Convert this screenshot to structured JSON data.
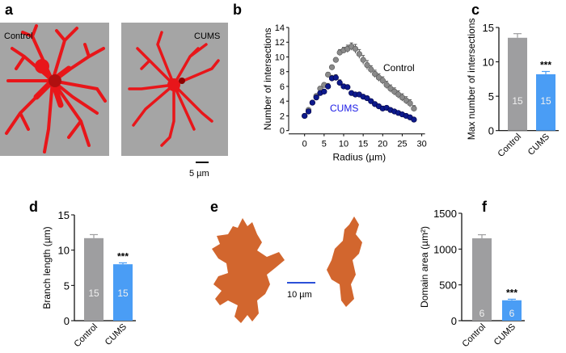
{
  "panel_labels": {
    "a": "a",
    "b": "b",
    "c": "c",
    "d": "d",
    "e": "e",
    "f": "f"
  },
  "panel_a": {
    "left_label": "Control",
    "right_label": "CUMS",
    "scale_bar": "5 µm"
  },
  "panel_e": {
    "scale_bar": "10 µm"
  },
  "colors": {
    "control_bar": "#9e9ea0",
    "cums_bar": "#4a9df5",
    "control_points": "#8a8a8a",
    "cums_points": "#0d1a8c",
    "cums_label": "#1a1ae6",
    "cell_red": "#e8161a",
    "cell_orange": "#d2662e",
    "image_bg": "#a5a5a5"
  },
  "chart_data": [
    {
      "id": "b",
      "type": "scatter",
      "xlabel": "Radius (µm)",
      "ylabel": "Number of intersections",
      "xlim": [
        -2,
        30
      ],
      "ylim": [
        0,
        14
      ],
      "xticks": [
        0,
        5,
        10,
        15,
        20,
        25,
        30
      ],
      "yticks": [
        0,
        2,
        4,
        6,
        8,
        10,
        12,
        14
      ],
      "series": [
        {
          "name": "Control",
          "x": [
            0,
            1,
            2,
            3,
            4,
            5,
            6,
            7,
            8,
            9,
            10,
            11,
            12,
            13,
            14,
            15,
            16,
            17,
            18,
            19,
            20,
            21,
            22,
            23,
            24,
            25,
            26,
            27,
            28
          ],
          "y": [
            2.0,
            2.8,
            3.8,
            4.7,
            5.7,
            6.2,
            7.6,
            8.6,
            9.6,
            10.6,
            10.9,
            11.1,
            11.4,
            11.1,
            10.4,
            9.6,
            8.9,
            8.3,
            7.7,
            7.2,
            6.8,
            6.2,
            5.7,
            5.3,
            4.9,
            4.5,
            4.1,
            3.7,
            3.0
          ],
          "err": [
            0.1,
            0.2,
            0.2,
            0.2,
            0.3,
            0.3,
            0.3,
            0.3,
            0.3,
            0.4,
            0.4,
            0.5,
            0.5,
            0.6,
            0.6,
            0.6,
            0.6,
            0.5,
            0.5,
            0.5,
            0.5,
            0.5,
            0.5,
            0.5,
            0.5,
            0.5,
            0.5,
            0.5,
            0.4
          ]
        },
        {
          "name": "CUMS",
          "x": [
            0,
            1,
            2,
            3,
            4,
            5,
            6,
            7,
            8,
            9,
            10,
            11,
            12,
            13,
            14,
            15,
            16,
            17,
            18,
            19,
            20,
            21,
            22,
            23,
            24,
            25,
            26,
            27,
            28
          ],
          "y": [
            2.0,
            2.6,
            3.8,
            4.5,
            5.1,
            5.3,
            6.0,
            7.1,
            7.2,
            6.5,
            6.0,
            5.9,
            5.1,
            4.9,
            4.9,
            4.6,
            4.4,
            4.0,
            3.6,
            3.3,
            3.0,
            3.1,
            2.8,
            2.6,
            2.4,
            2.2,
            2.0,
            1.8,
            1.5
          ],
          "err": [
            0.1,
            0.2,
            0.2,
            0.2,
            0.3,
            0.3,
            0.4,
            0.4,
            0.4,
            0.4,
            0.3,
            0.3,
            0.3,
            0.3,
            0.3,
            0.3,
            0.3,
            0.3,
            0.3,
            0.2,
            0.2,
            0.2,
            0.2,
            0.2,
            0.2,
            0.2,
            0.2,
            0.2,
            0.2
          ]
        }
      ]
    },
    {
      "id": "c",
      "type": "bar",
      "ylabel": "Max number of intersections",
      "ylim": [
        0,
        15
      ],
      "yticks": [
        0,
        5,
        10,
        15
      ],
      "categories": [
        "Control",
        "CUMS"
      ],
      "values": [
        13.5,
        8.2
      ],
      "err": [
        0.6,
        0.4
      ],
      "n": [
        "15",
        "15"
      ],
      "significance": [
        "",
        "***"
      ]
    },
    {
      "id": "d",
      "type": "bar",
      "ylabel": "Branch length (µm)",
      "ylim": [
        0,
        15
      ],
      "yticks": [
        0,
        5,
        10,
        15
      ],
      "categories": [
        "Control",
        "CUMS"
      ],
      "values": [
        11.7,
        8.0
      ],
      "err": [
        0.5,
        0.2
      ],
      "n": [
        "15",
        "15"
      ],
      "significance": [
        "",
        "***"
      ]
    },
    {
      "id": "f",
      "type": "bar",
      "ylabel": "Domain area (µm²)",
      "ylim": [
        0,
        1500
      ],
      "yticks": [
        0,
        500,
        1000,
        1500
      ],
      "categories": [
        "Control",
        "CUMS"
      ],
      "values": [
        1150,
        285
      ],
      "err": [
        50,
        15
      ],
      "n": [
        "6",
        "6"
      ],
      "significance": [
        "",
        "***"
      ]
    }
  ]
}
